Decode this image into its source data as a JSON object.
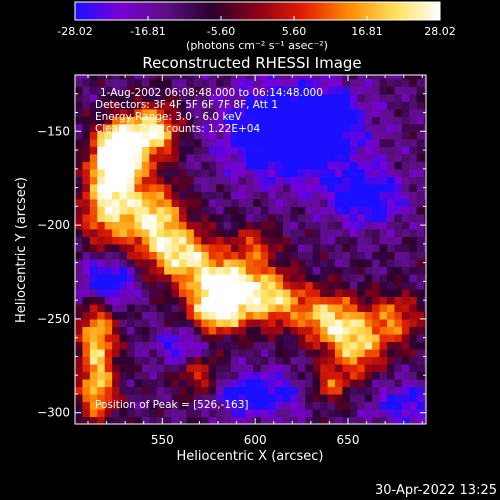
{
  "colorbar": {
    "ticks": [
      "-28.02",
      "-16.81",
      "-5.60",
      "5.60",
      "16.81",
      "28.02"
    ],
    "unit_label": "(photons cm⁻² s⁻¹ asec⁻²)",
    "gradient": [
      "#1a10ff",
      "#7a00d6",
      "#5a1080",
      "#2a002e",
      "#8a0018",
      "#e21e00",
      "#ff8a00",
      "#ffe05a",
      "#ffffff"
    ]
  },
  "chart_data": {
    "type": "heatmap",
    "title": "Reconstructed RHESSI Image",
    "xlabel": "Heliocentric X (arcsec)",
    "ylabel": "Heliocentric Y (arcsec)",
    "xlim": [
      503,
      692
    ],
    "ylim": [
      -306,
      -120
    ],
    "xticks": [
      550,
      600,
      650
    ],
    "yticks": [
      -150,
      -200,
      -250,
      -300
    ],
    "colorbar_range": [
      -28.02,
      28.02
    ],
    "info_lines": [
      "1-Aug-2002 06:08:48.000 to 06:14:48.000",
      "Detectors: 3F 4F 5F 6F 7F 8F, Att 1",
      "Energy Range: 3.0 - 6.0 keV",
      "Clean    Total counts: 1.22E+04"
    ],
    "peak_label": "Position of Peak = [526,-163]",
    "peak": [
      526,
      -163
    ]
  },
  "footer": {
    "timestamp": "30-Apr-2022 13:25"
  }
}
